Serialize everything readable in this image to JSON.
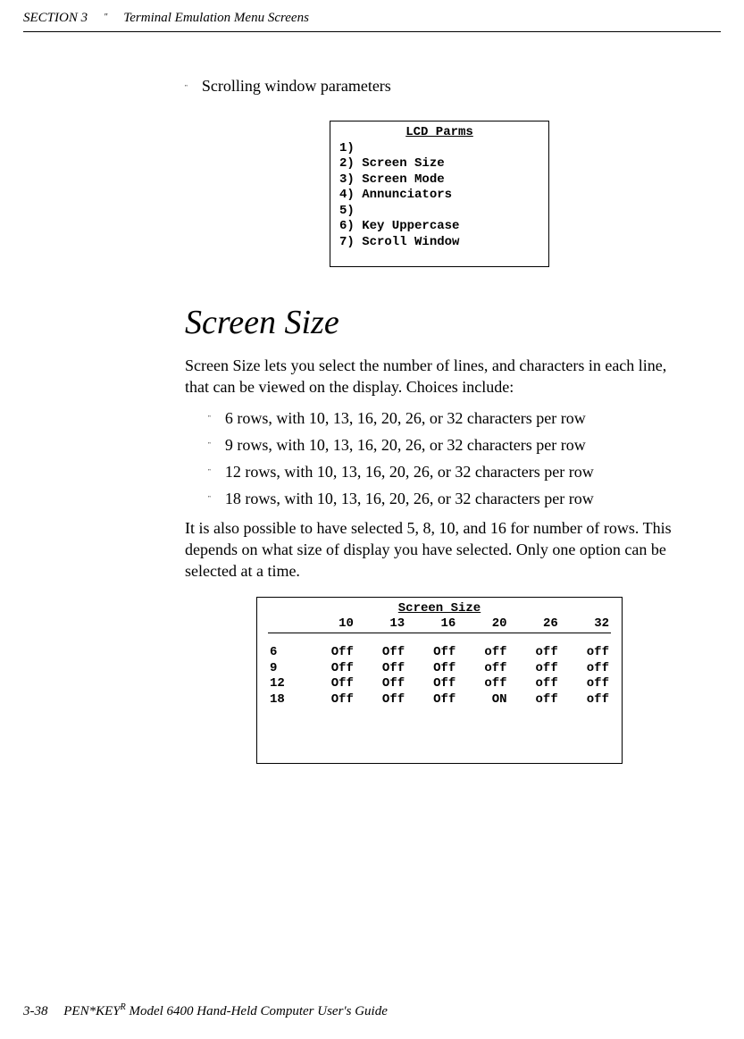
{
  "header": {
    "section": "SECTION 3",
    "bullet": "\"",
    "title": "Terminal Emulation Menu Screens"
  },
  "intro": {
    "bullet": "\"",
    "text": "Scrolling window parameters"
  },
  "lcd": {
    "title": "LCD Parms",
    "items": [
      "1)",
      "2) Screen Size",
      "3) Screen Mode",
      "4) Annunciators",
      "5)",
      "6) Key Uppercase",
      "7) Scroll Window"
    ]
  },
  "heading": "Screen Size",
  "para1": "Screen Size lets you select the number of lines, and characters in each line, that can be viewed on the display.  Choices include:",
  "list": [
    "6 rows, with 10, 13, 16, 20, 26, or 32 characters per row",
    "9 rows, with 10, 13, 16, 20, 26, or 32 characters per row",
    "12 rows, with 10, 13, 16, 20, 26, or 32 characters per row",
    "18 rows, with 10, 13, 16, 20, 26, or 32 characters per row"
  ],
  "list_bullet": "\"",
  "para2": "It is also possible to have selected 5, 8, 10, and 16 for number of rows.  This depends on what size of display you have selected.  Only one option can be selected at a time.",
  "screen": {
    "title": "Screen Size",
    "columns": [
      "",
      "10",
      "13",
      "16",
      "20",
      "26",
      "32"
    ],
    "rows": [
      [
        "6",
        "Off",
        "Off",
        "Off",
        "off",
        "off",
        "off"
      ],
      [
        "9",
        "Off",
        "Off",
        "Off",
        "off",
        "off",
        "off"
      ],
      [
        "12",
        "Off",
        "Off",
        "Off",
        "off",
        "off",
        "off"
      ],
      [
        "18",
        "Off",
        "Off",
        "Off",
        "ON",
        "off",
        "off"
      ]
    ]
  },
  "footer": {
    "page": "3-38",
    "text1": "PEN*KEY",
    "sup": "R",
    "text2": " Model 6400 Hand-Held Computer User's Guide"
  }
}
